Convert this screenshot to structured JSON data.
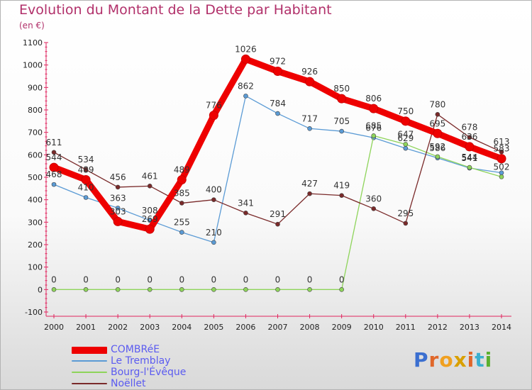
{
  "title": "Evolution du Montant de la Dette par Habitant",
  "unit": "(en €)",
  "brand": {
    "letters": [
      "P",
      "r",
      "o",
      "x",
      "i",
      "t",
      "i"
    ],
    "colors": [
      "#3b6fd0",
      "#e0672a",
      "#f0a020",
      "#d9a000",
      "#e0672a",
      "#3bb0d0",
      "#5bb030"
    ]
  },
  "chart_data": {
    "type": "line",
    "x": [
      "2000",
      "2001",
      "2002",
      "2003",
      "2004",
      "2005",
      "2006",
      "2007",
      "2008",
      "2009",
      "2010",
      "2011",
      "2012",
      "2013",
      "2014"
    ],
    "ylim": [
      -100,
      1100
    ],
    "yticks": [
      "-100",
      "0",
      "100",
      "200",
      "300",
      "400",
      "500",
      "600",
      "700",
      "800",
      "900",
      "1000",
      "1100"
    ],
    "grid": false,
    "legend_position": "bottom-left",
    "series": [
      {
        "name": "COMBRéE",
        "color": "#ee0000",
        "highlight": true,
        "values": [
          544,
          489,
          303,
          269,
          489,
          776,
          1026,
          972,
          926,
          850,
          806,
          750,
          695,
          636,
          583
        ],
        "labels": [
          "544",
          "489",
          "303",
          "269",
          "489",
          "776",
          "1026",
          "972",
          "926",
          "850",
          "806",
          "750",
          "695",
          "636",
          "583"
        ]
      },
      {
        "name": "Le Tremblay",
        "color": "#5b9bd5",
        "highlight": false,
        "values": [
          468,
          410,
          363,
          308,
          255,
          210,
          862,
          784,
          717,
          705,
          676,
          629,
          586,
          541,
          520
        ],
        "labels": [
          "468",
          "410",
          "363",
          "308",
          "255",
          "210",
          "862",
          "784",
          "717",
          "705",
          "676",
          "629",
          "586",
          "541",
          ""
        ]
      },
      {
        "name": "Bourg-l'Évêque",
        "color": "#8ed45a",
        "highlight": false,
        "values": [
          0,
          0,
          0,
          0,
          0,
          0,
          0,
          0,
          0,
          0,
          685,
          647,
          592,
          544,
          502
        ],
        "labels": [
          "0",
          "0",
          "0",
          "0",
          "0",
          "0",
          "0",
          "0",
          "0",
          "0",
          "685",
          "647",
          "592",
          "544",
          "502"
        ]
      },
      {
        "name": "Noëllet",
        "color": "#7a2a2a",
        "highlight": false,
        "values": [
          611,
          534,
          456,
          461,
          385,
          400,
          341,
          291,
          427,
          419,
          360,
          295,
          780,
          678,
          613
        ],
        "labels": [
          "611",
          "534",
          "456",
          "461",
          "385",
          "400",
          "341",
          "291",
          "427",
          "419",
          "360",
          "295",
          "780",
          "678",
          "613"
        ]
      }
    ]
  }
}
